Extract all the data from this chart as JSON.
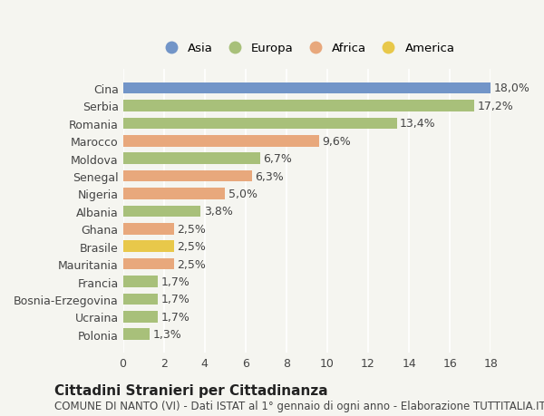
{
  "categories": [
    "Polonia",
    "Ucraina",
    "Bosnia-Erzegovina",
    "Francia",
    "Mauritania",
    "Brasile",
    "Ghana",
    "Albania",
    "Nigeria",
    "Senegal",
    "Moldova",
    "Marocco",
    "Romania",
    "Serbia",
    "Cina"
  ],
  "values": [
    1.3,
    1.7,
    1.7,
    1.7,
    2.5,
    2.5,
    2.5,
    3.8,
    5.0,
    6.3,
    6.7,
    9.6,
    13.4,
    17.2,
    18.0
  ],
  "labels": [
    "1,3%",
    "1,7%",
    "1,7%",
    "1,7%",
    "2,5%",
    "2,5%",
    "2,5%",
    "3,8%",
    "5,0%",
    "6,3%",
    "6,7%",
    "9,6%",
    "13,4%",
    "17,2%",
    "18,0%"
  ],
  "colors": [
    "#a8c07a",
    "#a8c07a",
    "#a8c07a",
    "#a8c07a",
    "#e8a87c",
    "#e8c84a",
    "#e8a87c",
    "#a8c07a",
    "#e8a87c",
    "#e8a87c",
    "#a8c07a",
    "#e8a87c",
    "#a8c07a",
    "#a8c07a",
    "#7295c8"
  ],
  "continent_colors": {
    "Asia": "#7295c8",
    "Europa": "#a8c07a",
    "Africa": "#e8a87c",
    "America": "#e8c84a"
  },
  "legend_labels": [
    "Asia",
    "Europa",
    "Africa",
    "America"
  ],
  "xlim": [
    0,
    18
  ],
  "xticks": [
    0,
    2,
    4,
    6,
    8,
    10,
    12,
    14,
    16,
    18
  ],
  "title": "Cittadini Stranieri per Cittadinanza",
  "subtitle": "COMUNE DI NANTO (VI) - Dati ISTAT al 1° gennaio di ogni anno - Elaborazione TUTTITALIA.IT",
  "background_color": "#f5f5f0",
  "bar_height": 0.65,
  "grid_color": "#ffffff",
  "text_color": "#444444",
  "title_fontsize": 11,
  "subtitle_fontsize": 8.5,
  "tick_fontsize": 9,
  "label_fontsize": 9
}
